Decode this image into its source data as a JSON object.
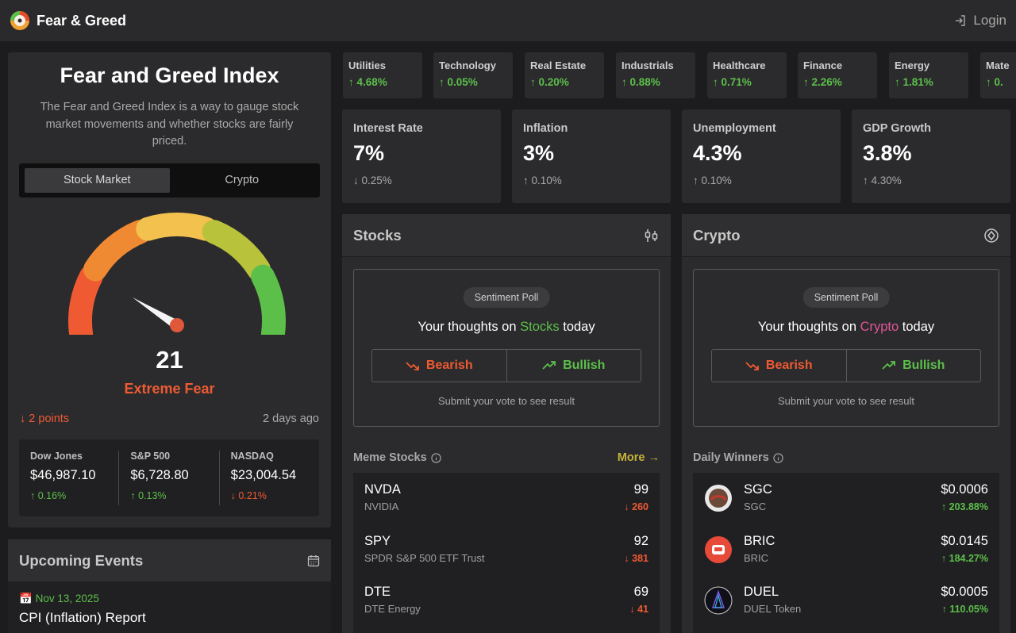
{
  "app": {
    "brand": "Fear & Greed",
    "login_label": "Login"
  },
  "index": {
    "title": "Fear and Greed Index",
    "description": "The Fear and Greed Index is a way to gauge stock market movements and whether stocks are fairly priced.",
    "tabs": [
      "Stock Market",
      "Crypto"
    ],
    "active_tab": "Stock Market",
    "score": "21",
    "score_value": 21,
    "label": "Extreme Fear",
    "points_change": "2 points",
    "updated": "2 days ago",
    "markets": [
      {
        "name": "Dow Jones",
        "value": "$46,987.10",
        "change": "0.16%",
        "direction": "up"
      },
      {
        "name": "S&P 500",
        "value": "$6,728.80",
        "change": "0.13%",
        "direction": "up"
      },
      {
        "name": "NASDAQ",
        "value": "$23,004.54",
        "change": "0.21%",
        "direction": "down"
      }
    ]
  },
  "events": {
    "title": "Upcoming Events",
    "items": [
      {
        "date": "Nov 13, 2025",
        "title": "CPI (Inflation) Report"
      }
    ]
  },
  "sectors": [
    {
      "name": "Utilities",
      "change": "4.68%"
    },
    {
      "name": "Technology",
      "change": "0.05%"
    },
    {
      "name": "Real Estate",
      "change": "0.20%"
    },
    {
      "name": "Industrials",
      "change": "0.88%"
    },
    {
      "name": "Healthcare",
      "change": "0.71%"
    },
    {
      "name": "Finance",
      "change": "2.26%"
    },
    {
      "name": "Energy",
      "change": "1.81%"
    },
    {
      "name": "Mate",
      "change": "0."
    }
  ],
  "macro": [
    {
      "label": "Interest Rate",
      "value": "7%",
      "change": "0.25%",
      "direction": "down"
    },
    {
      "label": "Inflation",
      "value": "3%",
      "change": "0.10%",
      "direction": "up"
    },
    {
      "label": "Unemployment",
      "value": "4.3%",
      "change": "0.10%",
      "direction": "up"
    },
    {
      "label": "GDP Growth",
      "value": "3.8%",
      "change": "4.30%",
      "direction": "up"
    }
  ],
  "stocks": {
    "title": "Stocks",
    "poll": {
      "badge": "Sentiment Poll",
      "question_prefix": "Your thoughts on",
      "subject": "Stocks",
      "question_suffix": "today",
      "bearish": "Bearish",
      "bullish": "Bullish",
      "note": "Submit your vote to see result"
    },
    "list_title": "Meme Stocks",
    "more_label": "More",
    "items": [
      {
        "symbol": "NVDA",
        "name": "NVIDIA",
        "value": "99",
        "change": "260",
        "direction": "down"
      },
      {
        "symbol": "SPY",
        "name": "SPDR S&P 500 ETF Trust",
        "value": "92",
        "change": "381",
        "direction": "down"
      },
      {
        "symbol": "DTE",
        "name": "DTE Energy",
        "value": "69",
        "change": "41",
        "direction": "down"
      }
    ]
  },
  "crypto": {
    "title": "Crypto",
    "poll": {
      "badge": "Sentiment Poll",
      "question_prefix": "Your thoughts on",
      "subject": "Crypto",
      "question_suffix": "today",
      "bearish": "Bearish",
      "bullish": "Bullish",
      "note": "Submit your vote to see result"
    },
    "list_title": "Daily Winners",
    "items": [
      {
        "symbol": "SGC",
        "name": "SGC",
        "value": "$0.0006",
        "change": "203.88%",
        "direction": "up"
      },
      {
        "symbol": "BRIC",
        "name": "BRIC",
        "value": "$0.0145",
        "change": "184.27%",
        "direction": "up"
      },
      {
        "symbol": "DUEL",
        "name": "DUEL Token",
        "value": "$0.0005",
        "change": "110.05%",
        "direction": "up"
      }
    ]
  },
  "colors": {
    "up": "#5cbf4a",
    "down": "#ef5a32",
    "accent": "#c5b23a",
    "pink": "#e0569a"
  }
}
